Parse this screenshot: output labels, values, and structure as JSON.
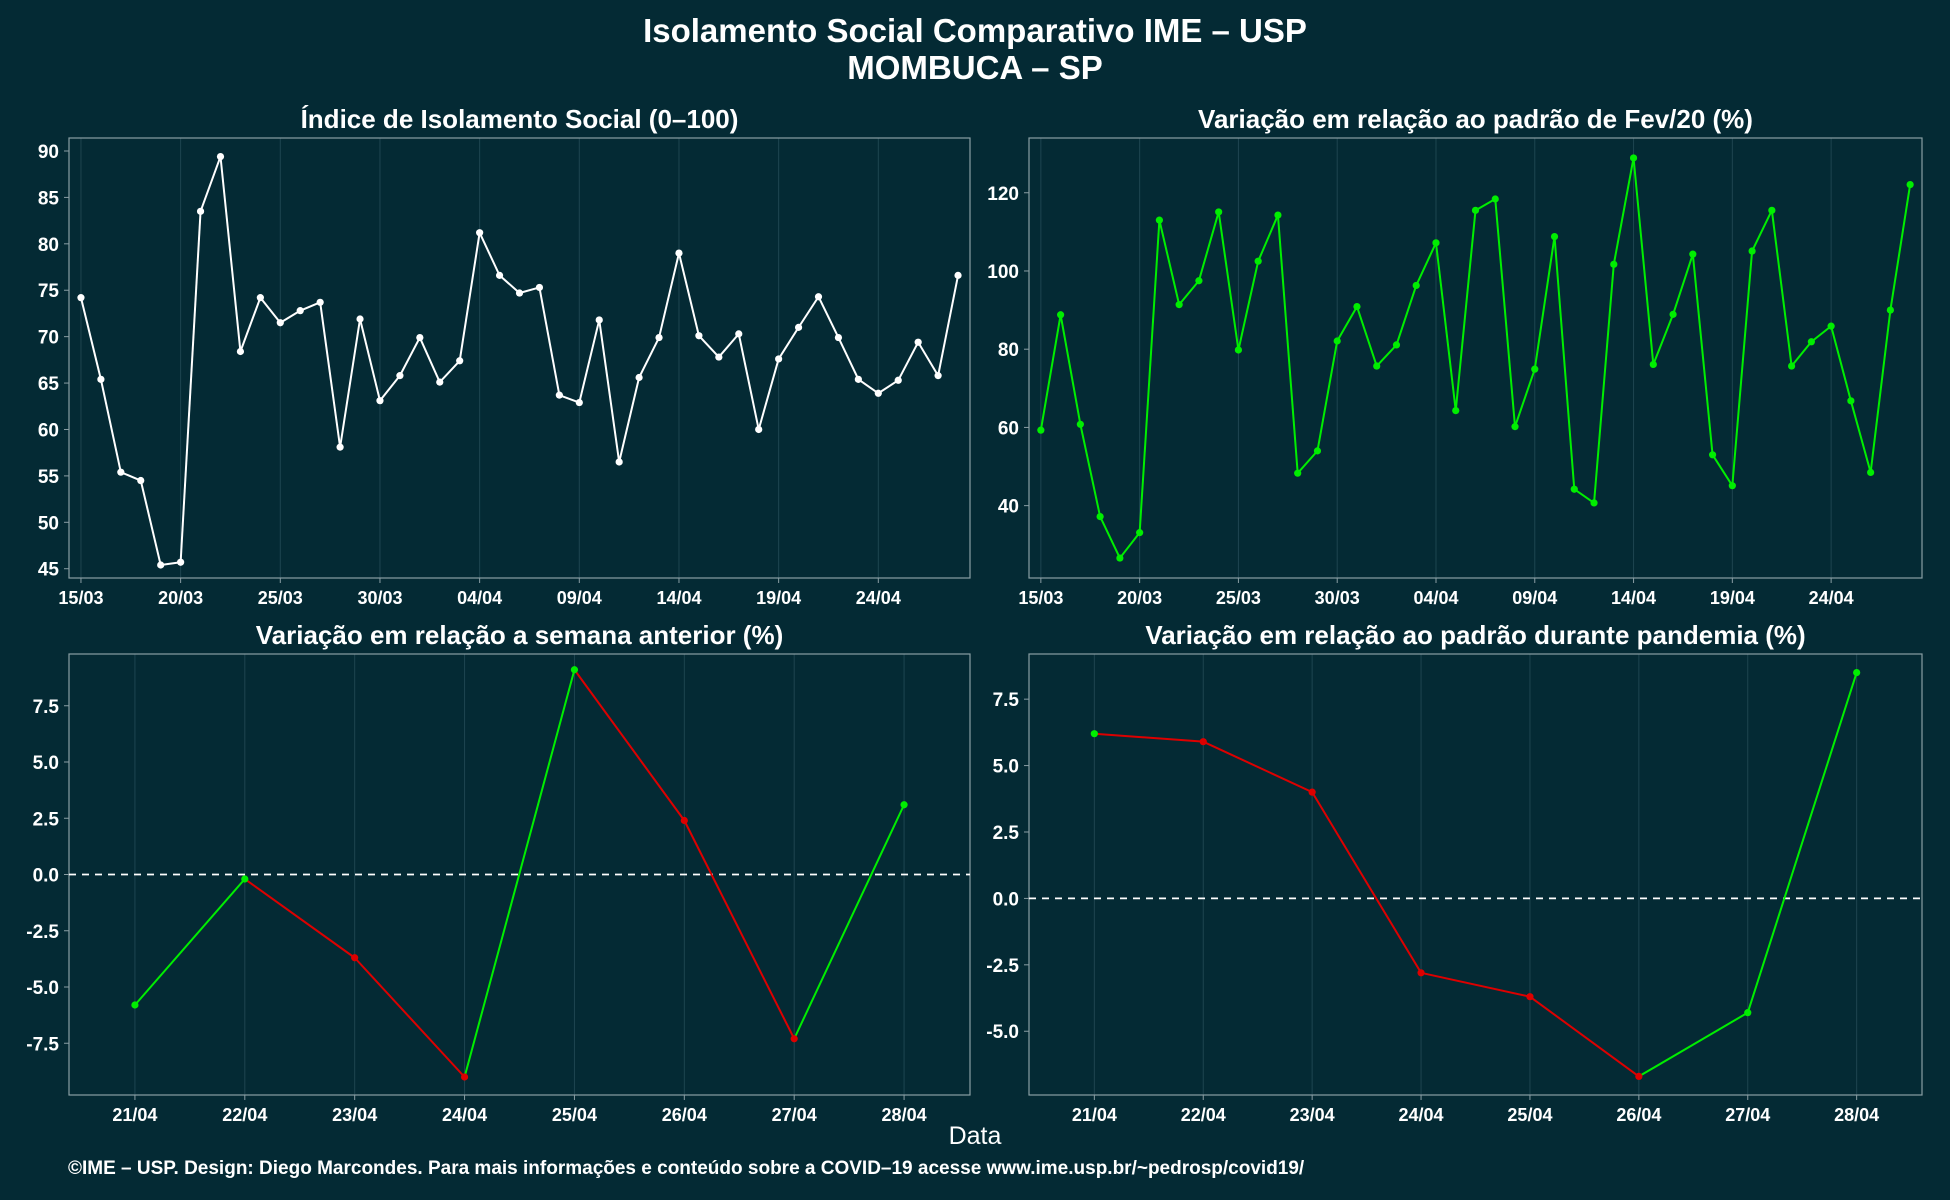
{
  "title": "Isolamento Social Comparativo IME – USP",
  "subtitle": "MOMBUCA – SP",
  "x_axis_title": "Data",
  "footer": "©IME – USP. Design: Diego Marcondes. Para mais informações e conteúdo sobre a COVID–19 acesse www.ime.usp.br/~pedrosp/covid19/",
  "colors": {
    "background": "#042a34",
    "white_line": "#ffffff",
    "positive": "#00ee00",
    "negative": "#dd0000",
    "frame": "#8a9ea4",
    "grid": "#1e4550",
    "zero_line": "#ffffff"
  },
  "chart_data": [
    {
      "id": "isolation",
      "type": "line",
      "title": "Índice de Isolamento Social (0–100)",
      "color_mode": "white",
      "x_tick_labels": [
        "15/03",
        "20/03",
        "25/03",
        "30/03",
        "04/04",
        "09/04",
        "14/04",
        "19/04",
        "24/04"
      ],
      "x_tick_days": [
        0,
        5,
        10,
        15,
        20,
        25,
        30,
        35,
        40
      ],
      "x_days": [
        0,
        1,
        2,
        3,
        4,
        5,
        6,
        7,
        8,
        9,
        10,
        11,
        12,
        13,
        14,
        15,
        16,
        17,
        18,
        19,
        20,
        21,
        22,
        23,
        24,
        25,
        26,
        27,
        28,
        29,
        30,
        31,
        32,
        33,
        34,
        35,
        36,
        37,
        38,
        39,
        40,
        41,
        42,
        43,
        44
      ],
      "values": [
        74.2,
        65.4,
        55.4,
        54.5,
        45.4,
        45.7,
        83.5,
        89.4,
        68.4,
        74.2,
        71.5,
        72.8,
        73.7,
        58.1,
        71.9,
        63.1,
        65.8,
        69.9,
        65.1,
        67.4,
        81.2,
        76.6,
        74.7,
        75.3,
        63.7,
        62.9,
        71.8,
        56.5,
        65.6,
        69.9,
        79.0,
        70.1,
        67.8,
        70.3,
        60.0,
        67.6,
        71.0,
        74.3,
        69.9,
        65.4,
        63.9,
        65.3,
        69.4,
        65.8,
        76.6
      ],
      "yticks": [
        45,
        50,
        55,
        60,
        65,
        70,
        75,
        80,
        85,
        90
      ],
      "xlim": [
        -0.6,
        44.6
      ],
      "ylim": [
        44.0,
        91.4
      ],
      "zero_line": false
    },
    {
      "id": "fev20",
      "type": "line",
      "title": "Variação em relação ao padrão de Fev/20 (%)",
      "color_mode": "green",
      "x_tick_labels": [
        "15/03",
        "20/03",
        "25/03",
        "30/03",
        "04/04",
        "09/04",
        "14/04",
        "19/04",
        "24/04"
      ],
      "x_tick_days": [
        0,
        5,
        10,
        15,
        20,
        25,
        30,
        35,
        40
      ],
      "x_days": [
        0,
        1,
        2,
        3,
        4,
        5,
        6,
        7,
        8,
        9,
        10,
        11,
        12,
        13,
        14,
        15,
        16,
        17,
        18,
        19,
        20,
        21,
        22,
        23,
        24,
        25,
        26,
        27,
        28,
        29,
        30,
        31,
        32,
        33,
        34,
        35,
        36,
        37,
        38,
        39,
        40,
        41,
        42,
        43,
        44
      ],
      "values": [
        59.3,
        88.8,
        60.8,
        37.2,
        26.6,
        33.1,
        113.0,
        91.4,
        97.5,
        115.1,
        79.8,
        102.5,
        114.3,
        48.3,
        54.0,
        82.1,
        90.9,
        75.7,
        81.1,
        96.3,
        107.2,
        64.3,
        115.5,
        118.4,
        60.2,
        74.9,
        108.8,
        44.2,
        40.7,
        101.7,
        128.9,
        76.1,
        88.9,
        104.3,
        53.0,
        45.1,
        105.1,
        115.5,
        75.7,
        81.9,
        85.9,
        66.8,
        48.5,
        90.0,
        122.1
      ],
      "yticks": [
        40,
        60,
        80,
        100,
        120
      ],
      "xlim": [
        -0.6,
        44.6
      ],
      "ylim": [
        21.5,
        134.0
      ],
      "zero_line": false
    },
    {
      "id": "week",
      "type": "line",
      "title": "Variação em relação a semana anterior (%)",
      "color_mode": "sign",
      "x_tick_labels": [
        "21/04",
        "22/04",
        "23/04",
        "24/04",
        "25/04",
        "26/04",
        "27/04",
        "28/04"
      ],
      "x_tick_days": [
        0,
        1,
        2,
        3,
        4,
        5,
        6,
        7
      ],
      "x_days": [
        0,
        1,
        2,
        3,
        4,
        5,
        6,
        7
      ],
      "values": [
        -5.8,
        -0.2,
        -3.7,
        -9.0,
        9.1,
        2.4,
        -7.3,
        3.1
      ],
      "yticks": [
        -7.5,
        -5.0,
        -2.5,
        0.0,
        2.5,
        5.0,
        7.5
      ],
      "xlim": [
        -0.6,
        7.6
      ],
      "ylim": [
        -9.8,
        9.8
      ],
      "zero_line": true
    },
    {
      "id": "pandemic",
      "type": "line",
      "title": "Variação em relação ao padrão durante pandemia (%)",
      "color_mode": "sign",
      "x_tick_labels": [
        "21/04",
        "22/04",
        "23/04",
        "24/04",
        "25/04",
        "26/04",
        "27/04",
        "28/04"
      ],
      "x_tick_days": [
        0,
        1,
        2,
        3,
        4,
        5,
        6,
        7
      ],
      "x_days": [
        0,
        1,
        2,
        3,
        4,
        5,
        6,
        7
      ],
      "values": [
        6.2,
        5.9,
        4.0,
        -2.8,
        -3.7,
        -6.7,
        -4.3,
        8.5
      ],
      "yticks": [
        -5.0,
        -2.5,
        0.0,
        2.5,
        5.0,
        7.5
      ],
      "xlim": [
        -0.6,
        7.6
      ],
      "ylim": [
        -7.4,
        9.2
      ],
      "zero_line": true
    }
  ]
}
